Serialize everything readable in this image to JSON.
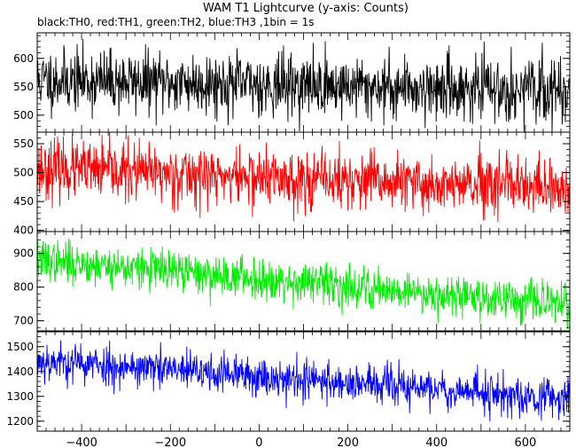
{
  "title": "WAM T1 Lightcurve (y-axis: Counts)",
  "subtitle": "black:TH0, red:TH1, green:TH2, blue:TH3 ,1bin = 1s",
  "chart_data": {
    "type": "line",
    "x_range": [
      -500,
      700
    ],
    "x_ticks": [
      -400,
      -200,
      0,
      200,
      400,
      600
    ],
    "x_tick_labels": [
      "−400",
      "−200",
      "0",
      "200",
      "400",
      "600"
    ],
    "panels": [
      {
        "name": "TH0",
        "color": "#000000",
        "ylim": [
          470,
          645
        ],
        "y_ticks": [
          500,
          550,
          600
        ],
        "y_tick_labels": [
          "500",
          "550",
          "600"
        ],
        "trend_start": 562,
        "trend_end": 543,
        "noise_sd": 27,
        "seed": 11
      },
      {
        "name": "TH1",
        "color": "#ff0000",
        "ylim": [
          398,
          570
        ],
        "y_ticks": [
          400,
          450,
          500,
          550
        ],
        "y_tick_labels": [
          "400",
          "450",
          "500",
          "550"
        ],
        "trend_start": 507,
        "trend_end": 470,
        "noise_sd": 25,
        "seed": 23
      },
      {
        "name": "TH2",
        "color": "#00ee00",
        "ylim": [
          670,
          965
        ],
        "y_ticks": [
          700,
          800,
          900
        ],
        "y_tick_labels": [
          "700",
          "800",
          "900"
        ],
        "trend_start": 880,
        "trend_end": 748,
        "noise_sd": 30,
        "seed": 37
      },
      {
        "name": "TH3",
        "color": "#0000ff",
        "ylim": [
          1160,
          1560
        ],
        "y_ticks": [
          1200,
          1300,
          1400,
          1500
        ],
        "y_tick_labels": [
          "1200",
          "1300",
          "1400",
          "1500"
        ],
        "trend_start": 1445,
        "trend_end": 1290,
        "noise_sd": 40,
        "seed": 53
      }
    ]
  }
}
